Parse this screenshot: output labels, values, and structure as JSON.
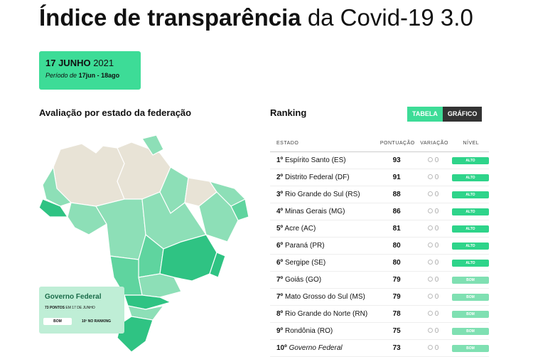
{
  "header": {
    "title_bold": "Índice de transparência",
    "title_rest": "da Covid-19 3.0"
  },
  "date_box": {
    "date": "17 JUNHO",
    "year": "2021",
    "period_label": "Período de",
    "period": "17jun - 18ago"
  },
  "map": {
    "heading": "Avaliação por estado da federação",
    "federal_box": {
      "title": "Governo Federal",
      "points": "73 PONTOS",
      "points_date": "EM 17 DE JUNHO",
      "level": "BOM",
      "rank": "10º NO RANKING"
    }
  },
  "ranking": {
    "heading": "Ranking",
    "tabs": [
      "TABELA",
      "GRÁFICO"
    ],
    "columns": [
      "ESTADO",
      "PONTUAÇÃO",
      "VARIAÇÃO",
      "NÍVEL"
    ],
    "rows": [
      {
        "rank": "1º",
        "name": "Espírito Santo (ES)",
        "score": 93,
        "variation": 0,
        "level": "ALTO"
      },
      {
        "rank": "2º",
        "name": "Distrito Federal (DF)",
        "score": 91,
        "variation": 0,
        "level": "ALTO"
      },
      {
        "rank": "3º",
        "name": "Rio Grande do Sul (RS)",
        "score": 88,
        "variation": 0,
        "level": "ALTO"
      },
      {
        "rank": "4º",
        "name": "Minas Gerais (MG)",
        "score": 86,
        "variation": 0,
        "level": "ALTO"
      },
      {
        "rank": "5º",
        "name": "Acre (AC)",
        "score": 81,
        "variation": 0,
        "level": "ALTO"
      },
      {
        "rank": "6º",
        "name": "Paraná (PR)",
        "score": 80,
        "variation": 0,
        "level": "ALTO"
      },
      {
        "rank": "6º",
        "name": "Sergipe (SE)",
        "score": 80,
        "variation": 0,
        "level": "ALTO"
      },
      {
        "rank": "7º",
        "name": "Goiás (GO)",
        "score": 79,
        "variation": 0,
        "level": "BOM"
      },
      {
        "rank": "7º",
        "name": "Mato Grosso do Sul (MS)",
        "score": 79,
        "variation": 0,
        "level": "BOM"
      },
      {
        "rank": "8º",
        "name": "Rio Grande do Norte (RN)",
        "score": 78,
        "variation": 0,
        "level": "BOM"
      },
      {
        "rank": "9º",
        "name": "Rondônia (RO)",
        "score": 75,
        "variation": 0,
        "level": "BOM"
      },
      {
        "rank": "10º",
        "name": "Governo Federal",
        "score": 73,
        "variation": 0,
        "level": "BOM"
      }
    ]
  }
}
